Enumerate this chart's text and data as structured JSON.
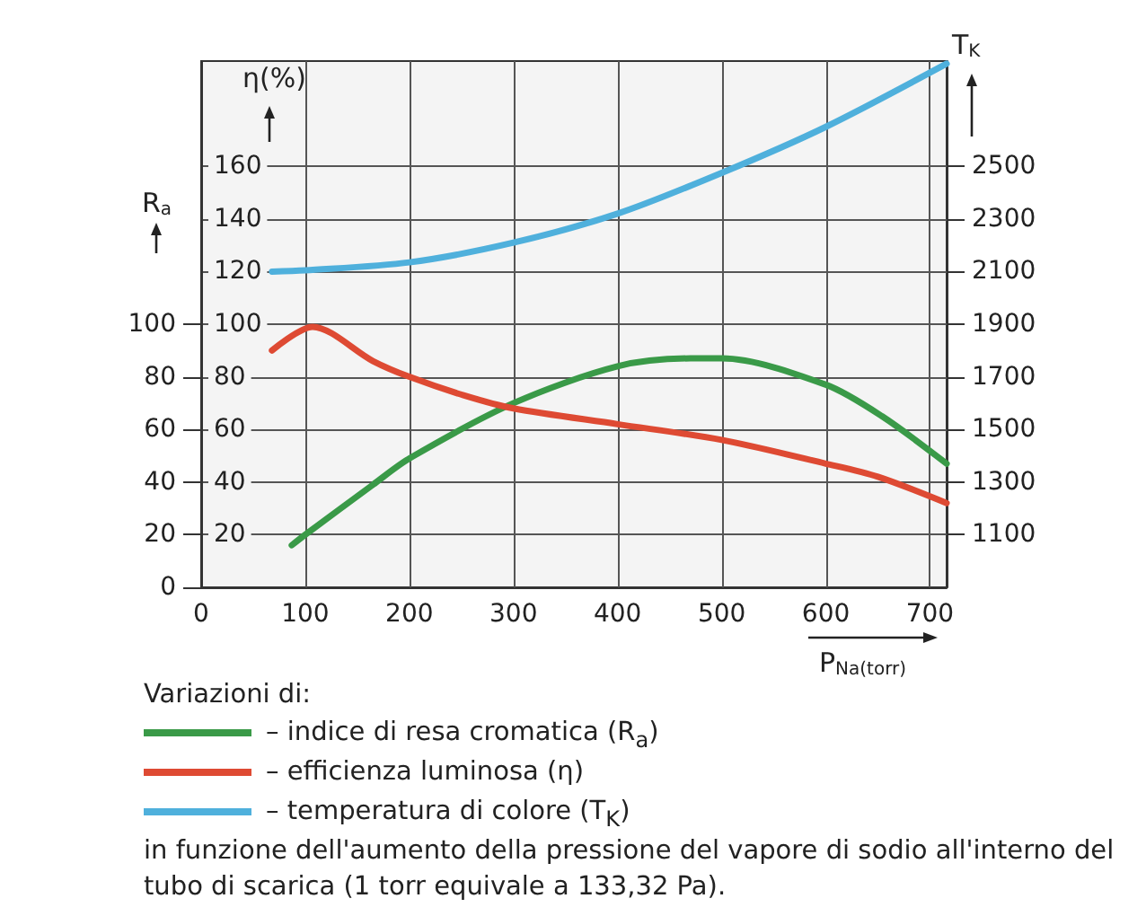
{
  "chart_data": {
    "type": "line",
    "xlabel": "P$_{Na(torr)}$",
    "ylabel": "R$_{a}$",
    "y2label": "η(%)",
    "y3label": "T$_{K}$",
    "xlim": [
      0,
      716
    ],
    "xticks": [
      0,
      100,
      200,
      300,
      400,
      500,
      600,
      700
    ],
    "ylim": [
      0,
      200
    ],
    "yticks": [
      0,
      20,
      40,
      60,
      80,
      100
    ],
    "y2lim": [
      0,
      200
    ],
    "y2ticks": [
      20,
      40,
      60,
      80,
      100,
      120,
      140,
      160
    ],
    "y3lim": [
      900,
      2900
    ],
    "y3ticks": [
      1100,
      1300,
      1500,
      1700,
      1900,
      2100,
      2300,
      2500
    ],
    "grid": true,
    "legend": "bottom",
    "marker": "none",
    "line_style": "solid",
    "series": [
      {
        "name": "– indice di resa cromatica (R$_{a}$)",
        "color": "#3a9a48",
        "axis": "y",
        "x": [
          87,
          100,
          165,
          200,
          300,
          400,
          470,
          500,
          600,
          654,
          716
        ],
        "values": [
          16,
          20,
          39,
          49,
          70,
          84,
          87,
          87,
          77,
          65,
          47
        ]
      },
      {
        "name": "– efficienza luminosa (η)",
        "color": "#de4a33",
        "axis": "y2",
        "x": [
          68,
          107,
          165,
          200,
          252,
          300,
          400,
          500,
          600,
          650,
          716
        ],
        "values": [
          90,
          99,
          86,
          80,
          73,
          68,
          62,
          56,
          47,
          42,
          32
        ]
      },
      {
        "name": "– temperatura di colore (T$_{K}$)",
        "color": "#4fb0dc",
        "axis": "y3",
        "x": [
          68,
          100,
          200,
          300,
          400,
          500,
          600,
          716
        ],
        "values": [
          2100,
          2105,
          2135,
          2210,
          2320,
          2475,
          2650,
          2890
        ]
      }
    ],
    "annotations": [
      "Variazioni di:",
      "in funzione dell'aumento della pressione del vapore di sodio all'interno del tubo di scarica (1 torr equivale a 133,32 Pa)."
    ]
  }
}
